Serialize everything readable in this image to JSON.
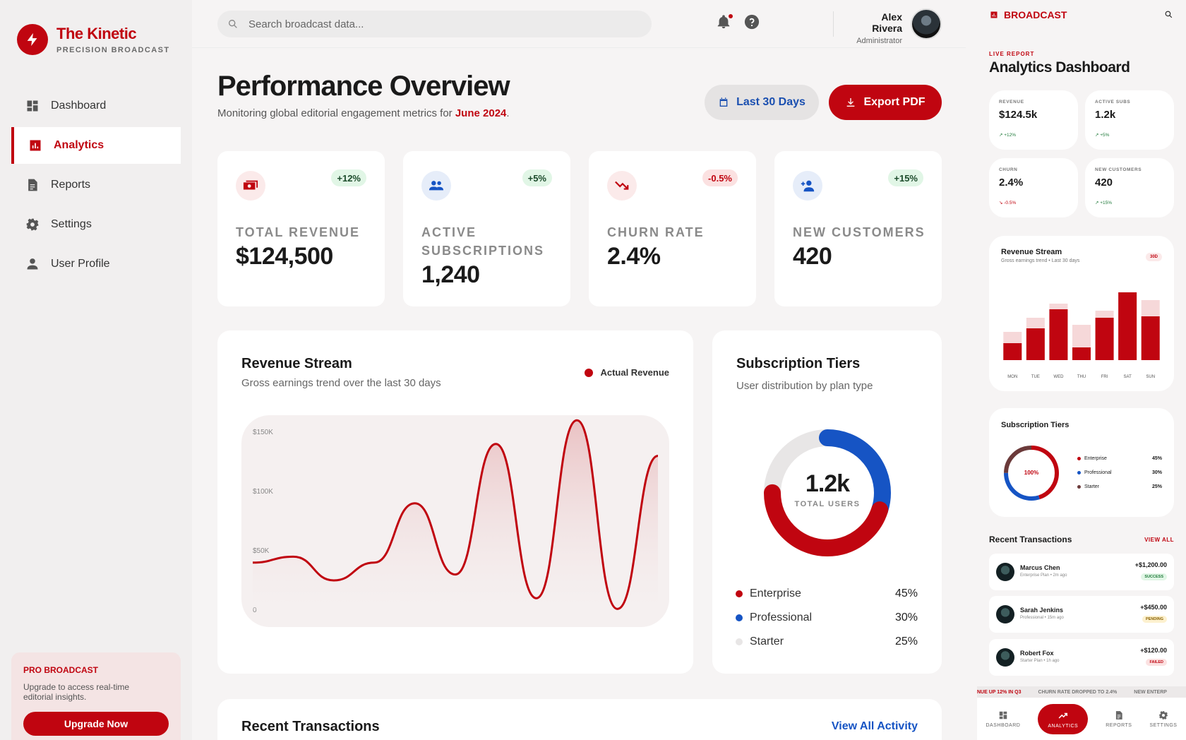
{
  "sidebar": {
    "brand": {
      "name": "The Kinetic",
      "tagline": "PRECISION BROADCAST"
    },
    "items": [
      {
        "label": "Dashboard",
        "icon": "dashboard-icon"
      },
      {
        "label": "Analytics",
        "icon": "analytics-icon",
        "active": true
      },
      {
        "label": "Reports",
        "icon": "reports-icon"
      },
      {
        "label": "Settings",
        "icon": "gear-icon"
      },
      {
        "label": "User Profile",
        "icon": "user-icon"
      }
    ],
    "promo": {
      "title": "PRO BROADCAST",
      "text": "Upgrade to access real-time editorial insights.",
      "button": "Upgrade Now"
    }
  },
  "topbar": {
    "search_placeholder": "Search broadcast data...",
    "user": {
      "name": "Alex Rivera",
      "role": "Administrator"
    }
  },
  "header": {
    "title": "Performance Overview",
    "subtitle_prefix": "Monitoring global editorial engagement metrics for ",
    "subtitle_period": "June 2024",
    "subtitle_suffix": ".",
    "date_button": "Last 30 Days",
    "export_button": "Export PDF"
  },
  "kpis": [
    {
      "label": "TOTAL REVENUE",
      "value": "$124,500",
      "change": "+12%",
      "trend": "up",
      "icon": "money-icon"
    },
    {
      "label": "ACTIVE SUBSCRIPTIONS",
      "value": "1,240",
      "change": "+5%",
      "trend": "up",
      "icon": "group-icon"
    },
    {
      "label": "CHURN RATE",
      "value": "2.4%",
      "change": "-0.5%",
      "trend": "down",
      "icon": "trending-down-icon"
    },
    {
      "label": "NEW CUSTOMERS",
      "value": "420",
      "change": "+15%",
      "trend": "up",
      "icon": "person-add-icon"
    }
  ],
  "revenue_card": {
    "title": "Revenue Stream",
    "subtitle": "Gross earnings trend over the last 30 days",
    "legend": "Actual Revenue"
  },
  "tiers_card": {
    "title": "Subscription Tiers",
    "subtitle": "User distribution by plan type",
    "center_value": "1.2k",
    "center_label": "TOTAL USERS",
    "tiers": [
      {
        "name": "Enterprise",
        "pct": "45%",
        "color": "#c00510"
      },
      {
        "name": "Professional",
        "pct": "30%",
        "color": "#1654c4"
      },
      {
        "name": "Starter",
        "pct": "25%",
        "color": "#e8e6e6"
      }
    ]
  },
  "transactions_card": {
    "title": "Recent Transactions",
    "view_all": "View All Activity"
  },
  "chart_data": [
    {
      "type": "line",
      "title": "Revenue Stream",
      "series": [
        {
          "name": "Actual Revenue",
          "values": [
            40,
            45,
            25,
            40,
            90,
            30,
            140,
            10,
            160,
            1,
            130
          ]
        }
      ],
      "y_ticks": [
        "$150K",
        "$100K",
        "$50K",
        "0"
      ],
      "ylim": [
        0,
        150
      ],
      "grid": false
    },
    {
      "type": "pie",
      "title": "Subscription Tiers",
      "categories": [
        "Enterprise",
        "Professional",
        "Starter"
      ],
      "values": [
        45,
        30,
        25
      ]
    },
    {
      "type": "bar",
      "title": "Revenue Stream",
      "categories": [
        "MON",
        "TUE",
        "WED",
        "THU",
        "FRI",
        "SAT",
        "SUN"
      ],
      "series": [
        {
          "values": [
            24,
            45,
            72,
            18,
            60,
            96,
            62
          ]
        },
        {
          "values": [
            40,
            60,
            80,
            50,
            70,
            96,
            85
          ]
        }
      ]
    }
  ],
  "mobile": {
    "brand": "BROADCAST",
    "live_label": "LIVE REPORT",
    "title": "Analytics Dashboard",
    "kpis": [
      {
        "label": "REVENUE",
        "value": "$124.5k",
        "change": "+12%",
        "trend": "up"
      },
      {
        "label": "ACTIVE SUBS",
        "value": "1.2k",
        "change": "+5%",
        "trend": "up"
      },
      {
        "label": "CHURN",
        "value": "2.4%",
        "change": "-0.5%",
        "trend": "down"
      },
      {
        "label": "NEW CUSTOMERS",
        "value": "420",
        "change": "+15%",
        "trend": "up"
      }
    ],
    "revenue": {
      "title": "Revenue Stream",
      "subtitle": "Gross earnings trend • Last 30 days",
      "badge": "30D"
    },
    "tiers": {
      "title": "Subscription Tiers",
      "center": "100%",
      "items": [
        {
          "name": "Enterprise",
          "pct": "45%"
        },
        {
          "name": "Professional",
          "pct": "30%"
        },
        {
          "name": "Starter",
          "pct": "25%"
        }
      ]
    },
    "transactions": {
      "title": "Recent Transactions",
      "view_all": "VIEW ALL",
      "items": [
        {
          "name": "Marcus Chen",
          "detail": "Enterprise Plan • 2m ago",
          "amount": "+$1,200.00",
          "status": "SUCCESS"
        },
        {
          "name": "Sarah Jenkins",
          "detail": "Professional • 15m ago",
          "amount": "+$450.00",
          "status": "PENDING"
        },
        {
          "name": "Robert Fox",
          "detail": "Starter Plan • 1h ago",
          "amount": "+$120.00",
          "status": "FAILED"
        }
      ]
    },
    "ticker": [
      "NUE UP 12% IN Q3",
      "CHURN RATE DROPPED TO 2.4%",
      "NEW ENTERP"
    ],
    "nav": [
      "DASHBOARD",
      "ANALYTICS",
      "REPORTS",
      "SETTINGS"
    ]
  }
}
